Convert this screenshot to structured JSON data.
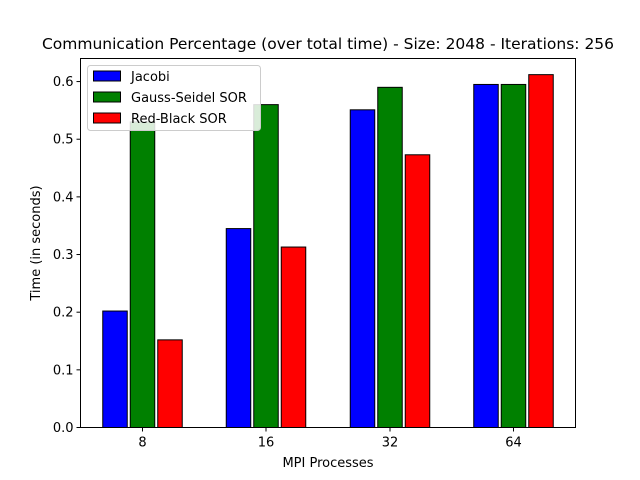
{
  "chart_data": {
    "type": "bar",
    "title": "Communication Percentage (over total time) - Size: 2048 - Iterations: 256",
    "xlabel": "MPI Processes",
    "ylabel": "Time (in seconds)",
    "categories": [
      "8",
      "16",
      "32",
      "64"
    ],
    "ylim": [
      0,
      0.64
    ],
    "yticks": [
      0.0,
      0.1,
      0.2,
      0.3,
      0.4,
      0.5,
      0.6
    ],
    "ytick_labels": [
      "0.0",
      "0.1",
      "0.2",
      "0.3",
      "0.4",
      "0.5",
      "0.6"
    ],
    "grid": false,
    "legend_position": "top-left",
    "series": [
      {
        "name": "Jacobi",
        "color": "#0000ff",
        "values": [
          0.202,
          0.345,
          0.551,
          0.595
        ]
      },
      {
        "name": "Gauss-Seidel SOR",
        "color": "#008000",
        "values": [
          0.53,
          0.56,
          0.59,
          0.595
        ]
      },
      {
        "name": "Red-Black SOR",
        "color": "#ff0000",
        "values": [
          0.152,
          0.313,
          0.473,
          0.612
        ]
      }
    ]
  }
}
